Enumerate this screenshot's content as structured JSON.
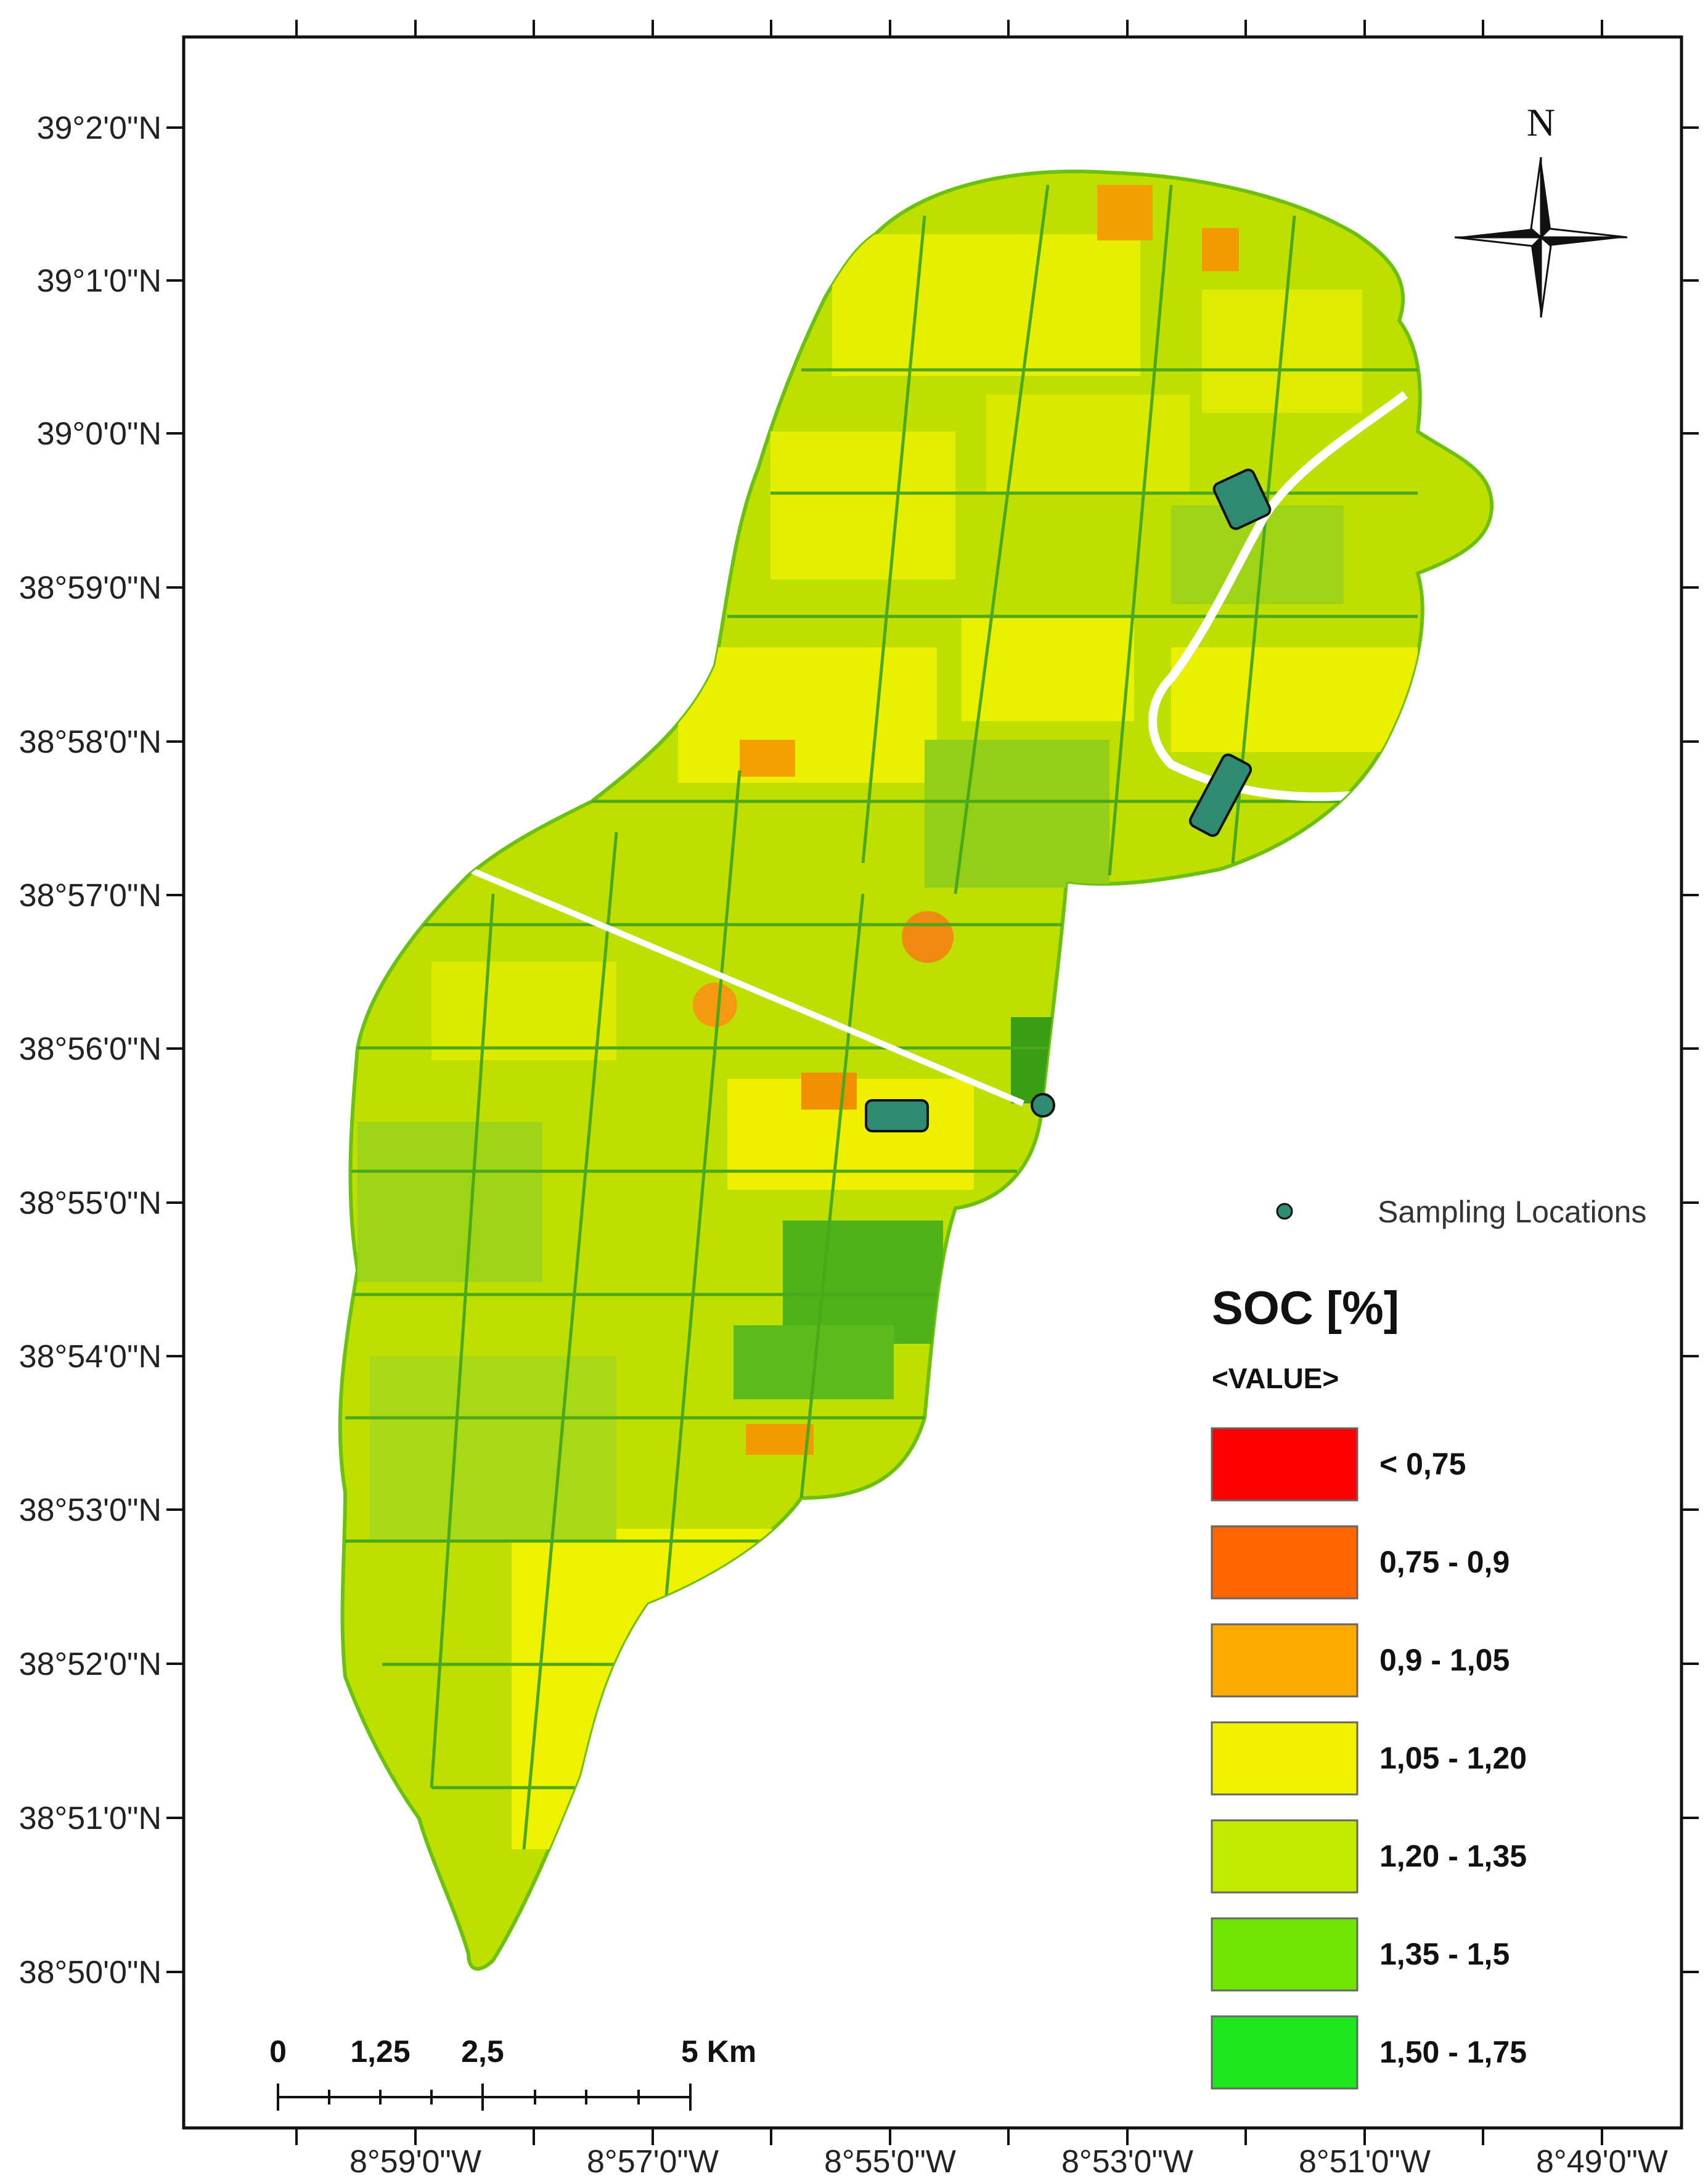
{
  "map": {
    "lat_labels": [
      "39°2'0\"N",
      "39°1'0\"N",
      "39°0'0\"N",
      "38°59'0\"N",
      "38°58'0\"N",
      "38°57'0\"N",
      "38°56'0\"N",
      "38°55'0\"N",
      "38°54'0\"N",
      "38°53'0\"N",
      "38°52'0\"N",
      "38°51'0\"N",
      "38°50'0\"N"
    ],
    "lon_labels": [
      "8°59'0\"W",
      "8°57'0\"W",
      "8°55'0\"W",
      "8°53'0\"W",
      "8°51'0\"W",
      "8°49'0\"W"
    ],
    "north_arrow_label": "N"
  },
  "legend": {
    "sampling_label": "Sampling Locations",
    "title": "SOC [%]",
    "subtitle": "<VALUE>",
    "classes": [
      {
        "label": "< 0,75",
        "color": "#ff0000"
      },
      {
        "label": "0,75 - 0,9",
        "color": "#ff6600"
      },
      {
        "label": "0,9 - 1,05",
        "color": "#ffaa00"
      },
      {
        "label": "1,05 - 1,20",
        "color": "#f2f200"
      },
      {
        "label": "1,20 - 1,35",
        "color": "#c2ea00"
      },
      {
        "label": "1,35 - 1,5",
        "color": "#6ee600"
      },
      {
        "label": "1,50 - 1,75",
        "color": "#1ee61e"
      }
    ]
  },
  "scale_bar": {
    "labels": [
      "0",
      "1,25",
      "2,5",
      "5 Km"
    ]
  },
  "colors": {
    "sample_marker": "#2e8b72",
    "field_dark": "#3aa314",
    "field_mid": "#9fd416",
    "field_light": "#d6e800",
    "river": "#ffffff"
  }
}
